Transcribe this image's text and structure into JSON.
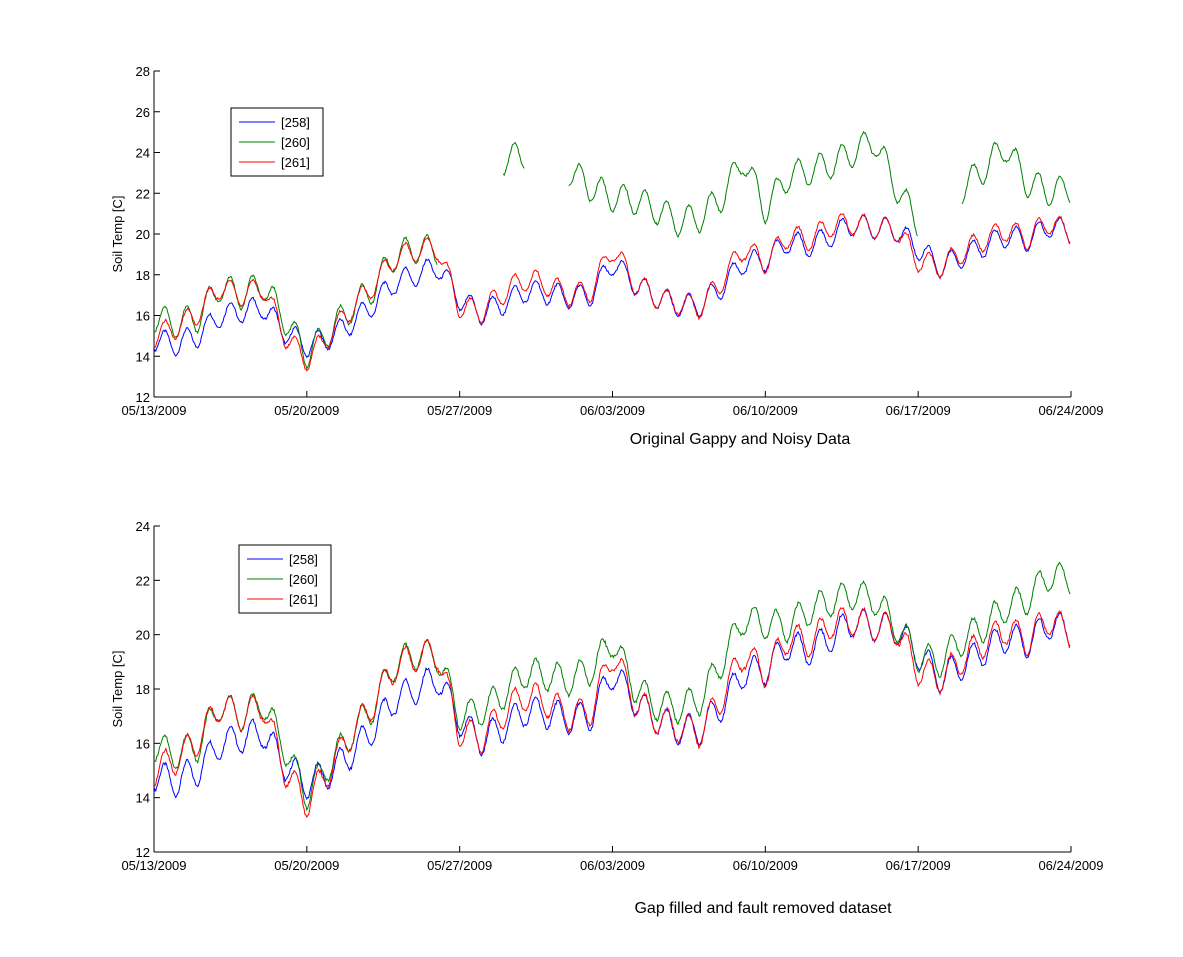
{
  "colors": {
    "258": "#0000ff",
    "260": "#007f00",
    "261": "#ff0000",
    "axis": "#000000",
    "background": "#ffffff"
  },
  "chart_data": [
    {
      "type": "line",
      "caption": "Original Gappy and Noisy Data",
      "ylabel": "Soil Temp [C]",
      "xlabel": "",
      "x_unit": "date",
      "xlim": [
        "05/13/2009",
        "06/24/2009"
      ],
      "ylim": [
        12,
        28
      ],
      "yticks": [
        "12",
        "14",
        "16",
        "18",
        "20",
        "22",
        "24",
        "26",
        "28"
      ],
      "xticks": [
        "05/13/2009",
        "05/20/2009",
        "05/27/2009",
        "06/03/2009",
        "06/10/2009",
        "06/17/2009",
        "06/24/2009"
      ],
      "legend_position": "top-left",
      "grid": false,
      "series": [
        {
          "name": "[258]",
          "color": "#0000ff",
          "x": [
            "05/13/2009",
            "05/14/2009",
            "05/15/2009",
            "05/16/2009",
            "05/17/2009",
            "05/18/2009",
            "05/19/2009",
            "05/20/2009",
            "05/21/2009",
            "05/22/2009",
            "05/23/2009",
            "05/24/2009",
            "05/25/2009",
            "05/26/2009",
            "05/27/2009",
            "05/28/2009",
            "05/29/2009",
            "05/30/2009",
            "05/31/2009",
            "06/01/2009",
            "06/02/2009",
            "06/03/2009",
            "06/04/2009",
            "06/05/2009",
            "06/06/2009",
            "06/07/2009",
            "06/08/2009",
            "06/09/2009",
            "06/10/2009",
            "06/11/2009",
            "06/12/2009",
            "06/13/2009",
            "06/14/2009",
            "06/15/2009",
            "06/16/2009",
            "06/17/2009",
            "06/18/2009",
            "06/19/2009",
            "06/20/2009",
            "06/21/2009",
            "06/22/2009",
            "06/23/2009",
            "06/24/2009"
          ],
          "y": [
            14.8,
            14.6,
            15.0,
            16.0,
            16.2,
            16.4,
            15.2,
            14.5,
            14.9,
            15.6,
            16.5,
            17.6,
            18.0,
            18.4,
            16.8,
            16.1,
            16.6,
            17.2,
            17.1,
            16.9,
            17.0,
            18.6,
            17.6,
            16.9,
            16.5,
            16.5,
            17.4,
            18.6,
            18.7,
            19.6,
            19.4,
            19.9,
            20.5,
            20.3,
            20.2,
            19.3,
            18.4,
            18.9,
            19.4,
            19.9,
            19.7,
            20.4,
            20.1
          ],
          "gaps": []
        },
        {
          "name": "[260]",
          "color": "#007f00",
          "x": [
            "05/13/2009",
            "05/14/2009",
            "05/15/2009",
            "05/16/2009",
            "05/17/2009",
            "05/18/2009",
            "05/19/2009",
            "05/20/2009",
            "05/21/2009",
            "05/22/2009",
            "05/23/2009",
            "05/24/2009",
            "05/25/2009",
            "05/26/2009",
            "05/27/2009",
            "05/28/2009",
            "05/29/2009",
            "05/30/2009",
            "05/31/2009",
            "06/01/2009",
            "06/02/2009",
            "06/03/2009",
            "06/04/2009",
            "06/05/2009",
            "06/06/2009",
            "06/07/2009",
            "06/08/2009",
            "06/09/2009",
            "06/10/2009",
            "06/11/2009",
            "06/12/2009",
            "06/13/2009",
            "06/14/2009",
            "06/15/2009",
            "06/16/2009",
            "06/17/2009",
            "06/18/2009",
            "06/19/2009",
            "06/20/2009",
            "06/21/2009",
            "06/22/2009",
            "06/23/2009",
            "06/24/2009"
          ],
          "y": [
            15.9,
            15.6,
            15.9,
            17.4,
            17.0,
            17.5,
            15.8,
            14.1,
            15.2,
            16.3,
            17.3,
            18.9,
            19.3,
            19.2,
            null,
            null,
            23.6,
            23.9,
            null,
            23.1,
            22.3,
            21.8,
            21.7,
            21.2,
            20.6,
            20.8,
            21.8,
            23.7,
            21.2,
            22.8,
            23.1,
            23.4,
            24.0,
            24.6,
            22.3,
            20.5,
            null,
            22.2,
            23.2,
            24.3,
            22.5,
            22.1,
            22.2
          ],
          "gaps": [
            [
              "05/26/2009",
              "05/28/2009"
            ],
            [
              "05/30/2009",
              "05/31/2009"
            ],
            [
              "06/17/2009",
              "06/19/2009"
            ]
          ]
        },
        {
          "name": "[261]",
          "color": "#ff0000",
          "x": [
            "05/13/2009",
            "05/14/2009",
            "05/15/2009",
            "05/16/2009",
            "05/17/2009",
            "05/18/2009",
            "05/19/2009",
            "05/20/2009",
            "05/21/2009",
            "05/22/2009",
            "05/23/2009",
            "05/24/2009",
            "05/25/2009",
            "05/26/2009",
            "05/27/2009",
            "05/28/2009",
            "05/29/2009",
            "05/30/2009",
            "05/31/2009",
            "06/01/2009",
            "06/02/2009",
            "06/03/2009",
            "06/04/2009",
            "06/05/2009",
            "06/06/2009",
            "06/07/2009",
            "06/08/2009",
            "06/09/2009",
            "06/10/2009",
            "06/11/2009",
            "06/12/2009",
            "06/13/2009",
            "06/14/2009",
            "06/15/2009",
            "06/16/2009",
            "06/17/2009",
            "06/18/2009",
            "06/19/2009",
            "06/20/2009",
            "06/21/2009",
            "06/22/2009",
            "06/23/2009",
            "06/24/2009"
          ],
          "y": [
            15.0,
            15.4,
            16.1,
            17.4,
            17.0,
            17.4,
            15.0,
            13.8,
            15.0,
            16.3,
            17.4,
            18.8,
            19.2,
            19.3,
            16.4,
            16.2,
            17.1,
            17.8,
            17.5,
            17.0,
            17.2,
            19.3,
            17.6,
            16.9,
            16.6,
            16.4,
            17.7,
            19.3,
            18.6,
            19.9,
            19.7,
            20.4,
            20.5,
            20.3,
            20.2,
            18.7,
            18.4,
            19.1,
            19.7,
            20.2,
            19.8,
            20.6,
            20.0
          ],
          "gaps": []
        }
      ]
    },
    {
      "type": "line",
      "caption": "Gap filled and fault removed dataset",
      "ylabel": "Soil Temp [C]",
      "xlabel": "",
      "x_unit": "date",
      "xlim": [
        "05/13/2009",
        "06/24/2009"
      ],
      "ylim": [
        12,
        24
      ],
      "yticks": [
        "12",
        "14",
        "16",
        "18",
        "20",
        "22",
        "24"
      ],
      "xticks": [
        "05/13/2009",
        "05/20/2009",
        "05/27/2009",
        "06/03/2009",
        "06/10/2009",
        "06/17/2009",
        "06/24/2009"
      ],
      "legend_position": "top-left",
      "grid": false,
      "series": [
        {
          "name": "[258]",
          "color": "#0000ff",
          "x": [
            "05/13/2009",
            "05/14/2009",
            "05/15/2009",
            "05/16/2009",
            "05/17/2009",
            "05/18/2009",
            "05/19/2009",
            "05/20/2009",
            "05/21/2009",
            "05/22/2009",
            "05/23/2009",
            "05/24/2009",
            "05/25/2009",
            "05/26/2009",
            "05/27/2009",
            "05/28/2009",
            "05/29/2009",
            "05/30/2009",
            "05/31/2009",
            "06/01/2009",
            "06/02/2009",
            "06/03/2009",
            "06/04/2009",
            "06/05/2009",
            "06/06/2009",
            "06/07/2009",
            "06/08/2009",
            "06/09/2009",
            "06/10/2009",
            "06/11/2009",
            "06/12/2009",
            "06/13/2009",
            "06/14/2009",
            "06/15/2009",
            "06/16/2009",
            "06/17/2009",
            "06/18/2009",
            "06/19/2009",
            "06/20/2009",
            "06/21/2009",
            "06/22/2009",
            "06/23/2009",
            "06/24/2009"
          ],
          "y": [
            14.8,
            14.6,
            15.0,
            16.0,
            16.2,
            16.4,
            15.2,
            14.5,
            14.9,
            15.6,
            16.5,
            17.6,
            18.0,
            18.4,
            16.8,
            16.1,
            16.6,
            17.2,
            17.1,
            16.9,
            17.0,
            18.6,
            17.6,
            16.9,
            16.5,
            16.5,
            17.4,
            18.6,
            18.7,
            19.6,
            19.4,
            19.9,
            20.5,
            20.3,
            20.2,
            19.3,
            18.4,
            18.9,
            19.4,
            19.9,
            19.7,
            20.4,
            20.1
          ],
          "gaps": []
        },
        {
          "name": "[260]",
          "color": "#007f00",
          "x": [
            "05/13/2009",
            "05/14/2009",
            "05/15/2009",
            "05/16/2009",
            "05/17/2009",
            "05/18/2009",
            "05/19/2009",
            "05/20/2009",
            "05/21/2009",
            "05/22/2009",
            "05/23/2009",
            "05/24/2009",
            "05/25/2009",
            "05/26/2009",
            "05/27/2009",
            "05/28/2009",
            "05/29/2009",
            "05/30/2009",
            "05/31/2009",
            "06/01/2009",
            "06/02/2009",
            "06/03/2009",
            "06/04/2009",
            "06/05/2009",
            "06/06/2009",
            "06/07/2009",
            "06/08/2009",
            "06/09/2009",
            "06/10/2009",
            "06/11/2009",
            "06/12/2009",
            "06/13/2009",
            "06/14/2009",
            "06/15/2009",
            "06/16/2009",
            "06/17/2009",
            "06/18/2009",
            "06/19/2009",
            "06/20/2009",
            "06/21/2009",
            "06/22/2009",
            "06/23/2009",
            "06/24/2009"
          ],
          "y": [
            15.9,
            15.6,
            15.9,
            17.4,
            17.0,
            17.5,
            15.8,
            14.1,
            15.2,
            16.3,
            17.3,
            18.9,
            19.3,
            19.2,
            17.0,
            17.2,
            17.8,
            18.6,
            18.5,
            18.3,
            18.7,
            19.8,
            18.1,
            17.4,
            17.3,
            17.6,
            19.0,
            20.6,
            20.4,
            20.3,
            20.9,
            21.2,
            21.5,
            21.3,
            20.3,
            19.2,
            19.0,
            19.8,
            20.3,
            21.0,
            21.3,
            22.2,
            22.0
          ],
          "gaps": []
        },
        {
          "name": "[261]",
          "color": "#ff0000",
          "x": [
            "05/13/2009",
            "05/14/2009",
            "05/15/2009",
            "05/16/2009",
            "05/17/2009",
            "05/18/2009",
            "05/19/2009",
            "05/20/2009",
            "05/21/2009",
            "05/22/2009",
            "05/23/2009",
            "05/24/2009",
            "05/25/2009",
            "05/26/2009",
            "05/27/2009",
            "05/28/2009",
            "05/29/2009",
            "05/30/2009",
            "05/31/2009",
            "06/01/2009",
            "06/02/2009",
            "06/03/2009",
            "06/04/2009",
            "06/05/2009",
            "06/06/2009",
            "06/07/2009",
            "06/08/2009",
            "06/09/2009",
            "06/10/2009",
            "06/11/2009",
            "06/12/2009",
            "06/13/2009",
            "06/14/2009",
            "06/15/2009",
            "06/16/2009",
            "06/17/2009",
            "06/18/2009",
            "06/19/2009",
            "06/20/2009",
            "06/21/2009",
            "06/22/2009",
            "06/23/2009",
            "06/24/2009"
          ],
          "y": [
            15.0,
            15.4,
            16.1,
            17.4,
            17.0,
            17.4,
            15.0,
            13.8,
            15.0,
            16.3,
            17.4,
            18.8,
            19.2,
            19.3,
            16.4,
            16.2,
            17.1,
            17.8,
            17.5,
            17.0,
            17.2,
            19.3,
            17.6,
            16.9,
            16.6,
            16.4,
            17.7,
            19.3,
            18.6,
            19.9,
            19.7,
            20.4,
            20.5,
            20.3,
            20.2,
            18.7,
            18.4,
            19.1,
            19.7,
            20.2,
            19.8,
            20.6,
            20.0
          ],
          "gaps": []
        }
      ]
    }
  ]
}
